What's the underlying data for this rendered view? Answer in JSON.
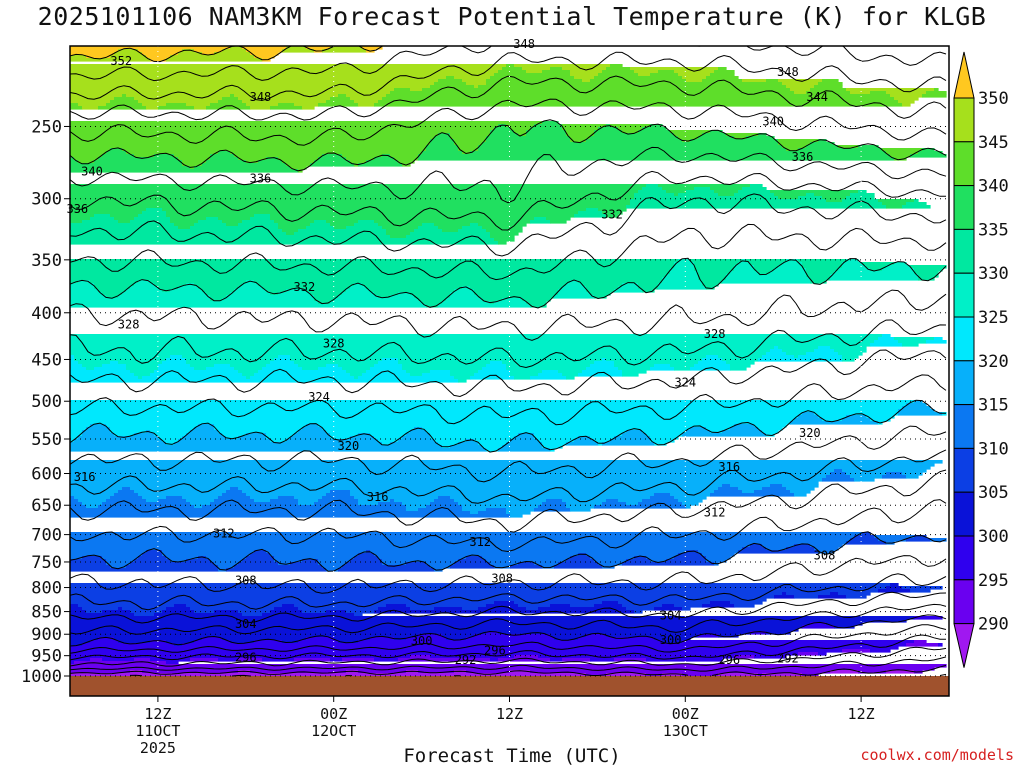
{
  "chart_data": {
    "type": "contour",
    "title": "2025101106 NAM3KM Forecast Potential Temperature (K) for KLGB",
    "xlabel": "Forecast Time (UTC)",
    "credit": "coolwx.com/models",
    "y_axis": {
      "quantity": "pressure (hPa)",
      "ticks": [
        250,
        300,
        350,
        400,
        450,
        500,
        550,
        600,
        650,
        700,
        750,
        800,
        850,
        900,
        950,
        1000
      ],
      "range": [
        1000,
        200
      ],
      "grid": "dotted"
    },
    "x_axis": {
      "range_hours": [
        6,
        66
      ],
      "ticks": [
        {
          "hour": 12,
          "lines": [
            "12Z",
            "11OCT",
            "2025"
          ]
        },
        {
          "hour": 24,
          "lines": [
            "00Z",
            "12OCT"
          ]
        },
        {
          "hour": 36,
          "lines": [
            "12Z"
          ]
        },
        {
          "hour": 48,
          "lines": [
            "00Z",
            "13OCT"
          ]
        },
        {
          "hour": 60,
          "lines": [
            "12Z"
          ]
        }
      ],
      "grid": "dotted"
    },
    "colorbar": {
      "unit": "K",
      "ticks": [
        290,
        295,
        300,
        305,
        310,
        315,
        320,
        325,
        330,
        335,
        340,
        345,
        350
      ],
      "colors": [
        "#a018f0",
        "#6a00f0",
        "#2f00ee",
        "#0a12d8",
        "#0c3fe4",
        "#0b78f2",
        "#07b0fa",
        "#00e8fd",
        "#00f0c8",
        "#00e8a0",
        "#20e060",
        "#5ede2a",
        "#a6e01c",
        "#f2f230",
        "#ffc820"
      ]
    },
    "theta_profiles": [
      {
        "hour": 6,
        "p": [
          1000,
          975,
          950,
          925,
          900,
          850,
          800,
          700,
          600,
          500,
          450,
          400,
          350,
          300,
          250,
          200
        ],
        "theta": [
          288.5,
          293.5,
          296.5,
          299.5,
          301.5,
          305,
          307.5,
          312,
          317,
          322.5,
          325.5,
          328,
          332,
          336,
          342.5,
          352
        ]
      },
      {
        "hour": 24,
        "p": [
          1000,
          975,
          950,
          925,
          900,
          850,
          800,
          700,
          600,
          500,
          450,
          400,
          350,
          300,
          250,
          200
        ],
        "theta": [
          288.5,
          293,
          296,
          299,
          301,
          305,
          308,
          312,
          317,
          322.5,
          325.5,
          328.5,
          332.5,
          337,
          343,
          351
        ]
      },
      {
        "hour": 36,
        "p": [
          1000,
          975,
          950,
          925,
          900,
          850,
          800,
          700,
          600,
          500,
          450,
          400,
          350,
          300,
          250,
          200
        ],
        "theta": [
          288.5,
          292.5,
          295.5,
          298,
          300,
          304,
          307.5,
          313,
          318,
          323,
          326,
          329,
          333,
          337.5,
          340,
          348
        ]
      },
      {
        "hour": 48,
        "p": [
          1000,
          975,
          950,
          925,
          900,
          850,
          800,
          700,
          600,
          500,
          450,
          400,
          350,
          300,
          250,
          200
        ],
        "theta": [
          289.5,
          293.5,
          296.5,
          299,
          301,
          304.5,
          307.5,
          312,
          317,
          322.5,
          325.5,
          328.5,
          330.5,
          334,
          340.5,
          348
        ]
      },
      {
        "hour": 66,
        "p": [
          1000,
          975,
          950,
          925,
          900,
          850,
          800,
          700,
          600,
          500,
          450,
          400,
          350,
          300,
          250,
          200
        ],
        "theta": [
          288.5,
          290.5,
          292.5,
          294.5,
          296.5,
          301,
          305,
          310,
          314.5,
          320.5,
          323.5,
          327,
          330.5,
          335.5,
          343,
          350
        ]
      }
    ],
    "contour_labels": [
      {
        "text": "352",
        "hour": 9.5,
        "p": 212
      },
      {
        "text": "348",
        "hour": 19,
        "p": 232
      },
      {
        "text": "348",
        "hour": 37,
        "p": 203
      },
      {
        "text": "348",
        "hour": 55,
        "p": 218
      },
      {
        "text": "344",
        "hour": 57,
        "p": 232
      },
      {
        "text": "340",
        "hour": 7.5,
        "p": 280
      },
      {
        "text": "340",
        "hour": 54,
        "p": 247
      },
      {
        "text": "336",
        "hour": 6.5,
        "p": 308
      },
      {
        "text": "336",
        "hour": 19,
        "p": 285
      },
      {
        "text": "336",
        "hour": 56,
        "p": 270
      },
      {
        "text": "332",
        "hour": 22,
        "p": 375
      },
      {
        "text": "332",
        "hour": 43,
        "p": 312
      },
      {
        "text": "328",
        "hour": 10,
        "p": 412
      },
      {
        "text": "328",
        "hour": 24,
        "p": 432
      },
      {
        "text": "328",
        "hour": 50,
        "p": 422
      },
      {
        "text": "324",
        "hour": 23,
        "p": 495
      },
      {
        "text": "324",
        "hour": 48,
        "p": 477
      },
      {
        "text": "320",
        "hour": 25,
        "p": 560
      },
      {
        "text": "320",
        "hour": 56.5,
        "p": 542
      },
      {
        "text": "316",
        "hour": 7,
        "p": 605
      },
      {
        "text": "316",
        "hour": 27,
        "p": 637
      },
      {
        "text": "316",
        "hour": 51,
        "p": 590
      },
      {
        "text": "312",
        "hour": 16.5,
        "p": 698
      },
      {
        "text": "312",
        "hour": 34,
        "p": 713
      },
      {
        "text": "312",
        "hour": 50,
        "p": 662
      },
      {
        "text": "308",
        "hour": 18,
        "p": 786
      },
      {
        "text": "308",
        "hour": 35.5,
        "p": 782
      },
      {
        "text": "308",
        "hour": 57.5,
        "p": 738
      },
      {
        "text": "304",
        "hour": 18,
        "p": 877
      },
      {
        "text": "304",
        "hour": 47,
        "p": 858
      },
      {
        "text": "300",
        "hour": 30,
        "p": 915
      },
      {
        "text": "300",
        "hour": 47,
        "p": 913
      },
      {
        "text": "296",
        "hour": 18,
        "p": 955
      },
      {
        "text": "296",
        "hour": 51,
        "p": 960
      },
      {
        "text": "296",
        "hour": 35,
        "p": 938
      },
      {
        "text": "292",
        "hour": 33,
        "p": 960
      },
      {
        "text": "292",
        "hour": 55,
        "p": 957
      }
    ]
  }
}
